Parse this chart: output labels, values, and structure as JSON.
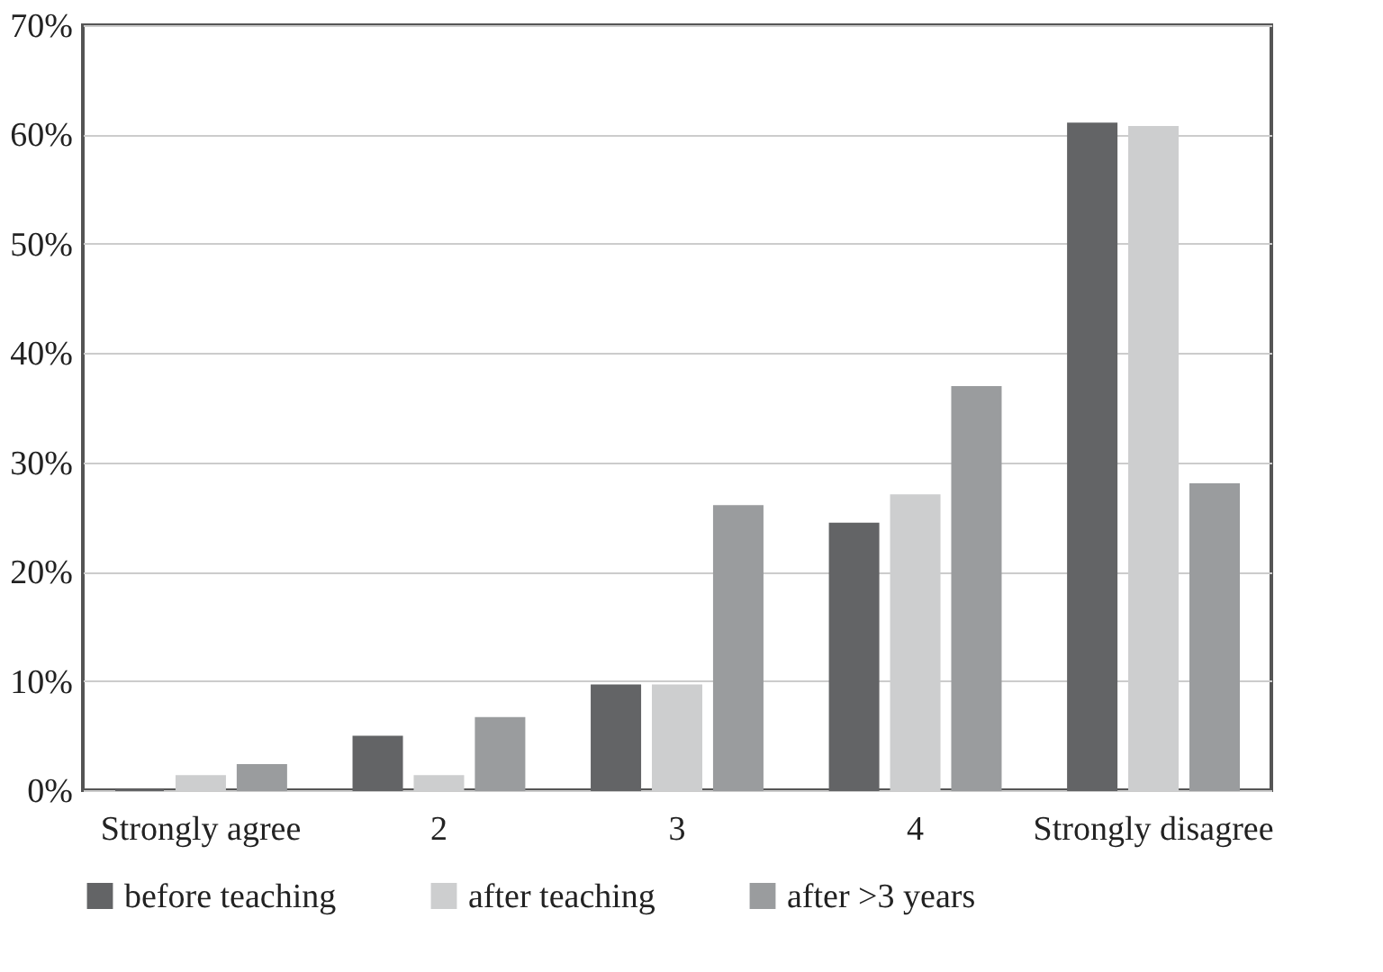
{
  "chart_data": {
    "type": "bar",
    "categories": [
      "Strongly agree",
      "2",
      "3",
      "4",
      "Strongly disagree"
    ],
    "series": [
      {
        "name": "before teaching",
        "color": "#636466",
        "values": [
          0,
          4.9,
          9.6,
          24.4,
          61
        ]
      },
      {
        "name": "after teaching",
        "color": "#cdcecf",
        "values": [
          1.3,
          1.3,
          9.6,
          27,
          60.7
        ]
      },
      {
        "name": "after >3 years",
        "color": "#9a9c9e",
        "values": [
          2.3,
          6.6,
          26,
          36.9,
          28
        ]
      }
    ],
    "ylim": [
      0,
      70
    ],
    "yticks": [
      {
        "value": 0,
        "label": "0%"
      },
      {
        "value": 10,
        "label": "10%"
      },
      {
        "value": 20,
        "label": "20%"
      },
      {
        "value": 30,
        "label": "30%"
      },
      {
        "value": 40,
        "label": "40%"
      },
      {
        "value": 50,
        "label": "50%"
      },
      {
        "value": 60,
        "label": "60%"
      },
      {
        "value": 70,
        "label": "70%"
      }
    ],
    "grid": "y",
    "legend": "bottom"
  }
}
